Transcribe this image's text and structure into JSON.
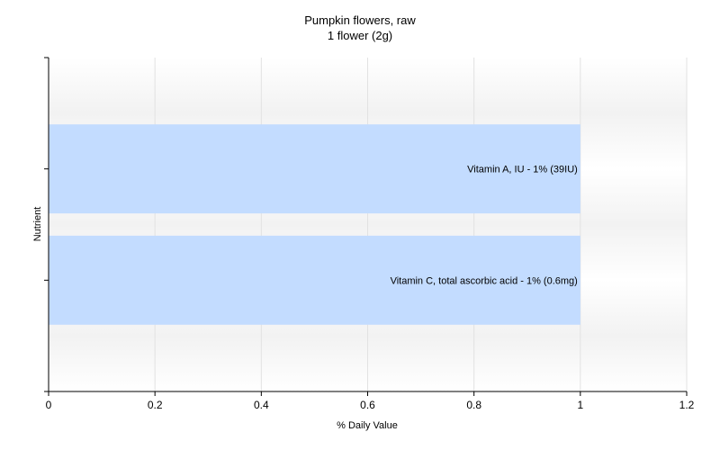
{
  "chart_data": {
    "type": "bar",
    "orientation": "horizontal",
    "title": "Pumpkin flowers, raw",
    "subtitle": "1 flower (2g)",
    "xlabel": "% Daily Value",
    "ylabel": "Nutrient",
    "xlim": [
      0,
      1.2
    ],
    "xticks": [
      "0",
      "0.2",
      "0.4",
      "0.6",
      "0.8",
      "1",
      "1.2"
    ],
    "grid": true,
    "bar_color": "#c3dcff",
    "categories": [
      "Vitamin A, IU",
      "Vitamin C, total ascorbic acid"
    ],
    "values": [
      1,
      1
    ],
    "labels": [
      "Vitamin A, IU - 1% (39IU)",
      "Vitamin C, total ascorbic acid - 1% (0.6mg)"
    ]
  }
}
